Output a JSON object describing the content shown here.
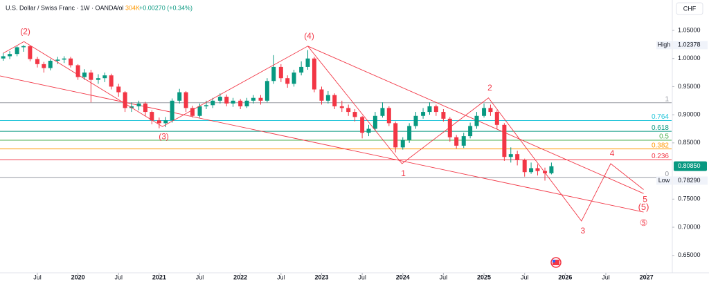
{
  "chart_data": {
    "type": "candlestick",
    "title": "U.S. Dollar / Swiss Franc · 1W · OANDA",
    "volume_label": "Vol",
    "volume": "304K",
    "change": "+0.00270 (+0.34%)",
    "currency": "CHF",
    "up_color": "#089981",
    "down_color": "#f23645",
    "x": [
      2019.08,
      2019.16,
      2019.25,
      2019.33,
      2019.41,
      2019.5,
      2019.58,
      2019.66,
      2019.75,
      2019.83,
      2019.91,
      2020.0,
      2020.08,
      2020.16,
      2020.25,
      2020.33,
      2020.41,
      2020.5,
      2020.58,
      2020.66,
      2020.75,
      2020.83,
      2020.91,
      2021.0,
      2021.08,
      2021.16,
      2021.25,
      2021.33,
      2021.41,
      2021.5,
      2021.58,
      2021.66,
      2021.75,
      2021.83,
      2021.91,
      2022.0,
      2022.08,
      2022.16,
      2022.25,
      2022.33,
      2022.41,
      2022.5,
      2022.58,
      2022.66,
      2022.75,
      2022.83,
      2022.91,
      2023.0,
      2023.08,
      2023.16,
      2023.25,
      2023.33,
      2023.41,
      2023.5,
      2023.58,
      2023.66,
      2023.75,
      2023.83,
      2023.91,
      2024.0,
      2024.08,
      2024.16,
      2024.25,
      2024.33,
      2024.41,
      2024.5,
      2024.58,
      2024.66,
      2024.75,
      2024.83,
      2024.91,
      2025.0,
      2025.08,
      2025.16,
      2025.25,
      2025.33,
      2025.41,
      2025.5,
      2025.58,
      2025.66,
      2025.75,
      2025.83
    ],
    "open": [
      1.0,
      1.004,
      1.008,
      1.02,
      1.022,
      0.999,
      0.99,
      0.983,
      0.996,
      0.998,
      1.0,
      0.988,
      0.967,
      0.975,
      0.962,
      0.965,
      0.97,
      0.95,
      0.94,
      0.912,
      0.915,
      0.92,
      0.905,
      0.89,
      0.885,
      0.89,
      0.925,
      0.94,
      0.912,
      0.898,
      0.915,
      0.917,
      0.925,
      0.932,
      0.92,
      0.925,
      0.915,
      0.925,
      0.93,
      0.925,
      0.96,
      0.985,
      0.965,
      0.955,
      0.975,
      0.985,
      1.0,
      0.945,
      0.925,
      0.935,
      0.915,
      0.912,
      0.905,
      0.896,
      0.868,
      0.875,
      0.898,
      0.912,
      0.885,
      0.842,
      0.855,
      0.88,
      0.898,
      0.905,
      0.915,
      0.905,
      0.893,
      0.86,
      0.845,
      0.862,
      0.88,
      0.898,
      0.912,
      0.905,
      0.882,
      0.825,
      0.83,
      0.82,
      0.798,
      0.805,
      0.8,
      0.796
    ],
    "high": [
      1.01,
      1.013,
      1.022,
      1.02378,
      1.0225,
      1.003,
      0.994,
      0.999,
      1.003,
      1.004,
      1.003,
      0.99,
      0.981,
      0.98,
      0.972,
      0.975,
      0.973,
      0.955,
      0.942,
      0.922,
      0.925,
      0.923,
      0.908,
      0.895,
      0.896,
      0.929,
      0.946,
      0.942,
      0.916,
      0.92,
      0.925,
      0.93,
      0.938,
      0.936,
      0.93,
      0.928,
      0.93,
      0.935,
      0.935,
      0.965,
      1.006,
      0.99,
      0.97,
      0.98,
      0.995,
      1.015,
      1.003,
      0.95,
      0.942,
      0.938,
      0.925,
      0.918,
      0.91,
      0.898,
      0.882,
      0.905,
      0.922,
      0.915,
      0.888,
      0.86,
      0.885,
      0.905,
      0.912,
      0.922,
      0.918,
      0.91,
      0.896,
      0.864,
      0.868,
      0.886,
      0.905,
      0.92,
      0.918,
      0.908,
      0.885,
      0.842,
      0.836,
      0.822,
      0.815,
      0.812,
      0.806,
      0.815
    ],
    "low": [
      0.996,
      0.999,
      1.004,
      1.012,
      0.995,
      0.984,
      0.975,
      0.979,
      0.99,
      0.992,
      0.984,
      0.962,
      0.962,
      0.922,
      0.955,
      0.958,
      0.945,
      0.932,
      0.905,
      0.905,
      0.908,
      0.898,
      0.883,
      0.876,
      0.878,
      0.886,
      0.92,
      0.905,
      0.895,
      0.895,
      0.91,
      0.912,
      0.92,
      0.915,
      0.914,
      0.91,
      0.912,
      0.92,
      0.918,
      0.922,
      0.955,
      0.958,
      0.948,
      0.95,
      0.97,
      0.98,
      0.94,
      0.918,
      0.92,
      0.91,
      0.905,
      0.898,
      0.888,
      0.858,
      0.862,
      0.872,
      0.895,
      0.88,
      0.833,
      0.838,
      0.85,
      0.875,
      0.893,
      0.9,
      0.898,
      0.888,
      0.852,
      0.84,
      0.841,
      0.858,
      0.875,
      0.895,
      0.898,
      0.875,
      0.818,
      0.815,
      0.81,
      0.79,
      0.795,
      0.792,
      0.7829,
      0.794
    ],
    "close": [
      1.004,
      1.008,
      1.02,
      1.022,
      0.999,
      0.99,
      0.983,
      0.996,
      0.998,
      1.0,
      0.988,
      0.967,
      0.975,
      0.962,
      0.965,
      0.97,
      0.95,
      0.94,
      0.912,
      0.915,
      0.92,
      0.905,
      0.89,
      0.885,
      0.89,
      0.925,
      0.94,
      0.912,
      0.898,
      0.915,
      0.917,
      0.925,
      0.932,
      0.92,
      0.925,
      0.915,
      0.925,
      0.93,
      0.925,
      0.96,
      0.985,
      0.965,
      0.955,
      0.975,
      0.985,
      1.0,
      0.945,
      0.925,
      0.935,
      0.915,
      0.912,
      0.905,
      0.896,
      0.868,
      0.875,
      0.898,
      0.912,
      0.885,
      0.842,
      0.855,
      0.88,
      0.898,
      0.905,
      0.915,
      0.905,
      0.893,
      0.86,
      0.845,
      0.862,
      0.88,
      0.898,
      0.912,
      0.905,
      0.882,
      0.825,
      0.83,
      0.82,
      0.798,
      0.805,
      0.8,
      0.796,
      0.8085
    ],
    "xlim": [
      2019.04,
      2027.31
    ],
    "ylim": [
      0.619,
      1.104
    ],
    "xticks": [
      {
        "value": 2019.5,
        "label": "Jul"
      },
      2020,
      {
        "value": 2020.5,
        "label": "Jul"
      },
      2021,
      {
        "value": 2021.5,
        "label": "Jul"
      },
      2022,
      {
        "value": 2022.5,
        "label": "Jul"
      },
      2023,
      {
        "value": 2023.5,
        "label": "Jul"
      },
      2024,
      {
        "value": 2024.5,
        "label": "Jul"
      },
      2025,
      {
        "value": 2025.5,
        "label": "Jul"
      },
      2026,
      {
        "value": 2026.5,
        "label": "Jul"
      },
      2027
    ],
    "yticks": [
      {
        "value": 1.05,
        "label": "1.05000"
      },
      {
        "value": 1.0,
        "label": "1.00000"
      },
      {
        "value": 0.95,
        "label": "0.95000"
      },
      {
        "value": 0.9,
        "label": "0.90000"
      },
      {
        "value": 0.85,
        "label": "0.85000"
      },
      {
        "value": 0.75,
        "label": "0.75000"
      },
      {
        "value": 0.7,
        "label": "0.70000"
      },
      {
        "value": 0.65,
        "label": "0.65000"
      }
    ],
    "grid": false,
    "high_marker": {
      "label": "High",
      "value": 1.02378,
      "value_label": "1.02378"
    },
    "low_marker": {
      "label": "Low",
      "value": 0.7829,
      "value_label": "0.78290"
    },
    "last_price": {
      "value": 0.8085,
      "value_label": "0.80850",
      "color": "#089981"
    },
    "fib": {
      "levels": [
        1,
        0.764,
        0.618,
        0.5,
        0.382,
        0.236,
        0
      ],
      "prices": [
        0.9213,
        0.8898,
        0.8705,
        0.8548,
        0.8392,
        0.8198,
        0.7883
      ],
      "colors": [
        "#9598a1",
        "#26c6da",
        "#089981",
        "#4caf50",
        "#ff9800",
        "#f23645",
        "#9598a1"
      ]
    },
    "wave": {
      "color": "#f23645",
      "x": [
        2019.08,
        2019.335,
        2021.04,
        2022.83,
        2023.99,
        2025.055,
        2026.2,
        2026.56,
        2026.965
      ],
      "y": [
        1.0095,
        1.03,
        0.879,
        1.022,
        0.813,
        0.93,
        0.711,
        0.813,
        0.767
      ],
      "labels": [
        null,
        "(2)",
        "(3)",
        "(4)",
        "1",
        "2",
        "3",
        "4",
        "5"
      ],
      "label_side": [
        null,
        "above",
        "below",
        "above",
        "below",
        "above",
        "below",
        "above",
        "below"
      ]
    },
    "trendlines": [
      {
        "x": [
          2019.04,
          2026.965
        ],
        "y": [
          0.969,
          0.727
        ]
      },
      {
        "x": [
          2022.83,
          2026.965
        ],
        "y": [
          1.022,
          0.76
        ]
      }
    ],
    "annotations": [
      {
        "text": "(5)",
        "x": 2026.965,
        "y": 0.735
      },
      {
        "text": "⑤",
        "x": 2026.965,
        "y": 0.707
      }
    ]
  }
}
